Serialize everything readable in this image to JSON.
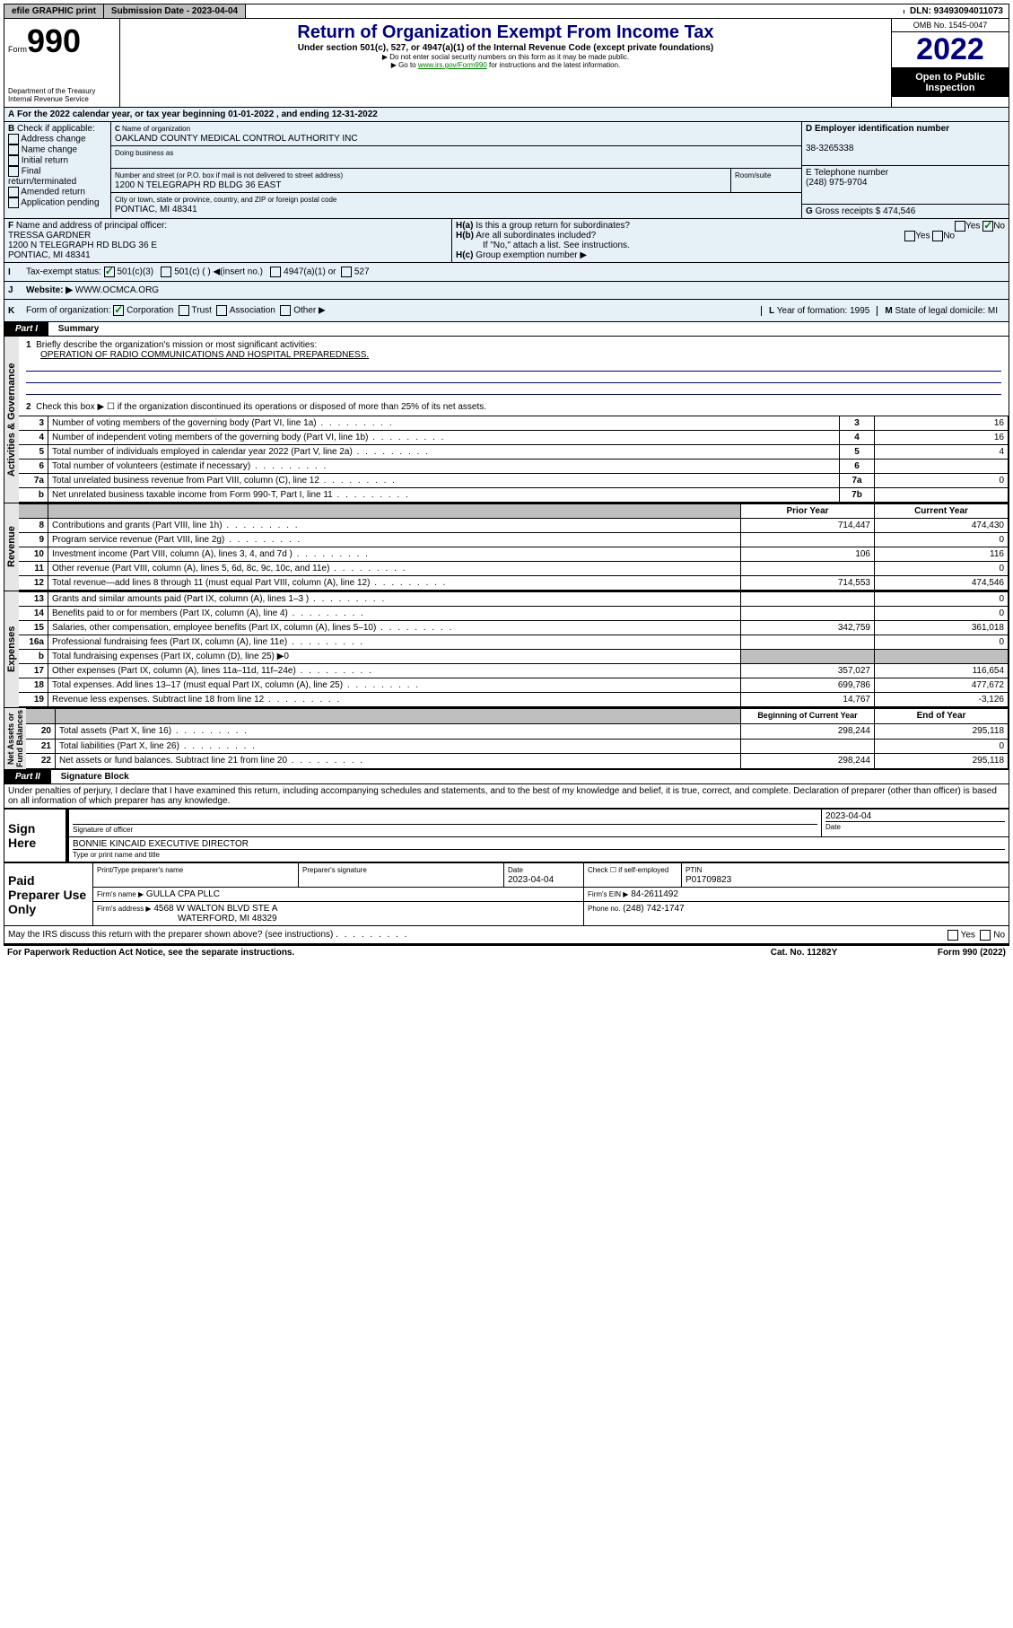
{
  "topbar": {
    "efile_label": "efile GRAPHIC print",
    "sub_date_label": "Submission Date - 2023-04-04",
    "dln_label": "DLN: 93493094011073"
  },
  "header": {
    "form_word": "Form",
    "form_num": "990",
    "title": "Return of Organization Exempt From Income Tax",
    "subtitle": "Under section 501(c), 527, or 4947(a)(1) of the Internal Revenue Code (except private foundations)",
    "note1": "▶ Do not enter social security numbers on this form as it may be made public.",
    "note2_pre": "▶ Go to ",
    "note2_link": "www.irs.gov/Form990",
    "note2_post": " for instructions and the latest information.",
    "dept": "Department of the Treasury\nInternal Revenue Service",
    "omb": "OMB No. 1545-0047",
    "year": "2022",
    "inspect": "Open to Public Inspection"
  },
  "rowA": {
    "calendar": "For the 2022 calendar year, or tax year beginning 01-01-2022   , and ending 12-31-2022",
    "check_label": "Check if applicable:",
    "cb_addr": "Address change",
    "cb_name": "Name change",
    "cb_init": "Initial return",
    "cb_final": "Final return/terminated",
    "cb_amend": "Amended return",
    "cb_app": "Application pending",
    "c_name_label": "Name of organization",
    "c_name": "OAKLAND COUNTY MEDICAL CONTROL AUTHORITY INC",
    "dba_label": "Doing business as",
    "street_label": "Number and street (or P.O. box if mail is not delivered to street address)",
    "room_label": "Room/suite",
    "street": "1200 N TELEGRAPH RD BLDG 36 EAST",
    "city_label": "City or town, state or province, country, and ZIP or foreign postal code",
    "city": "PONTIAC, MI  48341",
    "d_ein_label": "Employer identification number",
    "d_ein": "38-3265338",
    "e_tel_label": "E Telephone number",
    "e_tel": "(248) 975-9704",
    "g_gross_label": "Gross receipts $",
    "g_gross": "474,546",
    "f_label": "Name and address of principal officer:",
    "f_name": "TRESSA GARDNER",
    "f_addr1": "1200 N TELEGRAPH RD BLDG 36 E",
    "f_addr2": "PONTIAC, MI  48341",
    "ha_label": "Is this a group return for subordinates?",
    "hb_label": "Are all subordinates included?",
    "hb_note": "If \"No,\" attach a list. See instructions.",
    "hc_label": "Group exemption number ▶",
    "tax_label": "Tax-exempt status:",
    "tax_501c3": "501(c)(3)",
    "tax_501c": "501(c) (  ) ◀(insert no.)",
    "tax_4947": "4947(a)(1) or",
    "tax_527": "527",
    "website_label": "Website: ▶",
    "website": "WWW.OCMCA.ORG",
    "k_label": "Form of organization:",
    "k_corp": "Corporation",
    "k_trust": "Trust",
    "k_assoc": "Association",
    "k_other": "Other ▶",
    "l_label": "Year of formation:",
    "l_val": "1995",
    "m_label": "State of legal domicile:",
    "m_val": "MI"
  },
  "part1": {
    "hdr": "Part I",
    "title": "Summary",
    "q1_label": "Briefly describe the organization's mission or most significant activities:",
    "q1_val": "OPERATION OF RADIO COMMUNICATIONS AND HOSPITAL PREPAREDNESS.",
    "q2": "Check this box ▶ ☐ if the organization discontinued its operations or disposed of more than 25% of its net assets.",
    "rows_gov": [
      {
        "n": "3",
        "label": "Number of voting members of the governing body (Part VI, line 1a)",
        "box": "3",
        "val": "16"
      },
      {
        "n": "4",
        "label": "Number of independent voting members of the governing body (Part VI, line 1b)",
        "box": "4",
        "val": "16"
      },
      {
        "n": "5",
        "label": "Total number of individuals employed in calendar year 2022 (Part V, line 2a)",
        "box": "5",
        "val": "4"
      },
      {
        "n": "6",
        "label": "Total number of volunteers (estimate if necessary)",
        "box": "6",
        "val": ""
      },
      {
        "n": "7a",
        "label": "Total unrelated business revenue from Part VIII, column (C), line 12",
        "box": "7a",
        "val": "0"
      },
      {
        "n": "b",
        "label": "Net unrelated business taxable income from Form 990-T, Part I, line 11",
        "box": "7b",
        "val": ""
      }
    ],
    "col_prior": "Prior Year",
    "col_curr": "Current Year",
    "rows_rev": [
      {
        "n": "8",
        "label": "Contributions and grants (Part VIII, line 1h)",
        "prior": "714,447",
        "curr": "474,430"
      },
      {
        "n": "9",
        "label": "Program service revenue (Part VIII, line 2g)",
        "prior": "",
        "curr": "0"
      },
      {
        "n": "10",
        "label": "Investment income (Part VIII, column (A), lines 3, 4, and 7d )",
        "prior": "106",
        "curr": "116"
      },
      {
        "n": "11",
        "label": "Other revenue (Part VIII, column (A), lines 5, 6d, 8c, 9c, 10c, and 11e)",
        "prior": "",
        "curr": "0"
      },
      {
        "n": "12",
        "label": "Total revenue—add lines 8 through 11 (must equal Part VIII, column (A), line 12)",
        "prior": "714,553",
        "curr": "474,546"
      }
    ],
    "rows_exp": [
      {
        "n": "13",
        "label": "Grants and similar amounts paid (Part IX, column (A), lines 1–3 )",
        "prior": "",
        "curr": "0"
      },
      {
        "n": "14",
        "label": "Benefits paid to or for members (Part IX, column (A), line 4)",
        "prior": "",
        "curr": "0"
      },
      {
        "n": "15",
        "label": "Salaries, other compensation, employee benefits (Part IX, column (A), lines 5–10)",
        "prior": "342,759",
        "curr": "361,018"
      },
      {
        "n": "16a",
        "label": "Professional fundraising fees (Part IX, column (A), line 11e)",
        "prior": "",
        "curr": "0"
      },
      {
        "n": "b",
        "label": "Total fundraising expenses (Part IX, column (D), line 25) ▶0",
        "prior": "GREY",
        "curr": "GREY"
      },
      {
        "n": "17",
        "label": "Other expenses (Part IX, column (A), lines 11a–11d, 11f–24e)",
        "prior": "357,027",
        "curr": "116,654"
      },
      {
        "n": "18",
        "label": "Total expenses. Add lines 13–17 (must equal Part IX, column (A), line 25)",
        "prior": "699,786",
        "curr": "477,672"
      },
      {
        "n": "19",
        "label": "Revenue less expenses. Subtract line 18 from line 12",
        "prior": "14,767",
        "curr": "-3,126"
      }
    ],
    "col_begin": "Beginning of Current Year",
    "col_end": "End of Year",
    "rows_net": [
      {
        "n": "20",
        "label": "Total assets (Part X, line 16)",
        "prior": "298,244",
        "curr": "295,118"
      },
      {
        "n": "21",
        "label": "Total liabilities (Part X, line 26)",
        "prior": "",
        "curr": "0"
      },
      {
        "n": "22",
        "label": "Net assets or fund balances. Subtract line 21 from line 20",
        "prior": "298,244",
        "curr": "295,118"
      }
    ]
  },
  "part2": {
    "hdr": "Part II",
    "title": "Signature Block",
    "decl": "Under penalties of perjury, I declare that I have examined this return, including accompanying schedules and statements, and to the best of my knowledge and belief, it is true, correct, and complete. Declaration of preparer (other than officer) is based on all information of which preparer has any knowledge.",
    "sign_here": "Sign Here",
    "sig_officer": "Signature of officer",
    "sig_date": "2023-04-04",
    "date_label": "Date",
    "officer_name": "BONNIE KINCAID  EXECUTIVE DIRECTOR",
    "officer_type_label": "Type or print name and title",
    "paid_prep": "Paid Preparer Use Only",
    "prep_name_label": "Print/Type preparer's name",
    "prep_sig_label": "Preparer's signature",
    "prep_date_label": "Date",
    "prep_date": "2023-04-04",
    "check_self": "Check ☐ if self-employed",
    "ptin_label": "PTIN",
    "ptin": "P01709823",
    "firm_name_label": "Firm's name   ▶",
    "firm_name": "GULLA CPA PLLC",
    "firm_ein_label": "Firm's EIN ▶",
    "firm_ein": "84-2611492",
    "firm_addr_label": "Firm's address ▶",
    "firm_addr1": "4568 W WALTON BLVD STE A",
    "firm_addr2": "WATERFORD, MI  48329",
    "firm_phone_label": "Phone no.",
    "firm_phone": "(248) 742-1747",
    "may_irs": "May the IRS discuss this return with the preparer shown above? (see instructions)",
    "paperwork": "For Paperwork Reduction Act Notice, see the separate instructions.",
    "cat": "Cat. No. 11282Y",
    "form_foot": "Form 990 (2022)"
  }
}
